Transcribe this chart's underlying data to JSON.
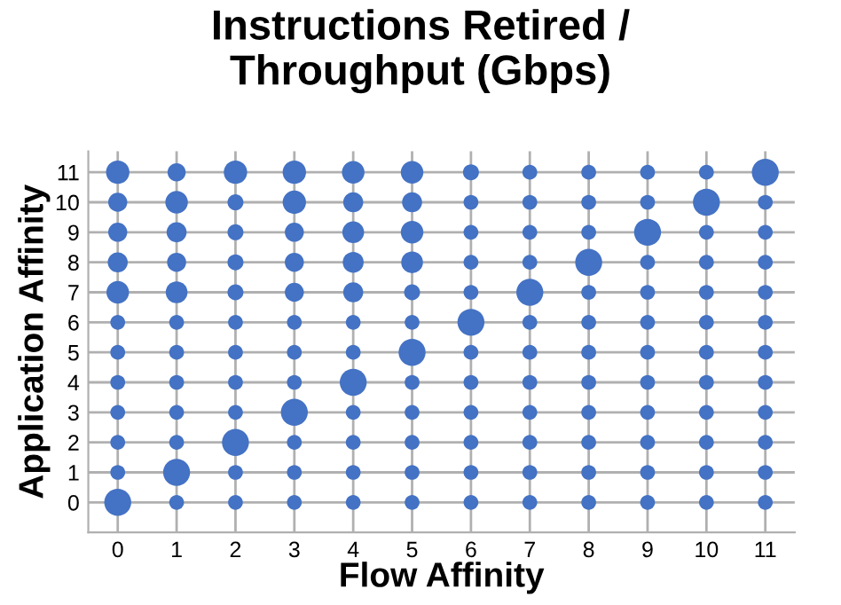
{
  "chart_data": {
    "type": "bubble",
    "title": "Instructions Retired /\nThroughput (Gbps)",
    "xlabel": "Flow Affinity",
    "ylabel": "Application Affinity",
    "series": [
      {
        "color": "#4472c4",
        "x": [
          0,
          1,
          2,
          3,
          4,
          5,
          6,
          7,
          8,
          9,
          10,
          11,
          0,
          1,
          2,
          3,
          4,
          5,
          6,
          7,
          8,
          9,
          10,
          11,
          0,
          1,
          2,
          3,
          4,
          5,
          6,
          7,
          8,
          9,
          10,
          11,
          0,
          1,
          2,
          3,
          4,
          5,
          6,
          7,
          8,
          9,
          10,
          11,
          0,
          1,
          2,
          3,
          4,
          5,
          6,
          7,
          8,
          9,
          10,
          11,
          0,
          1,
          2,
          3,
          4,
          5,
          6,
          7,
          8,
          9,
          10,
          11,
          0,
          1,
          2,
          3,
          4,
          5,
          6,
          7,
          8,
          9,
          10,
          11,
          0,
          1,
          2,
          3,
          4,
          5,
          6,
          7,
          8,
          9,
          10,
          11,
          0,
          1,
          2,
          3,
          4,
          5,
          6,
          7,
          8,
          9,
          10,
          11,
          0,
          1,
          2,
          3,
          4,
          5,
          6,
          7,
          8,
          9,
          10,
          11,
          0,
          1,
          2,
          3,
          4,
          5,
          6,
          7,
          8,
          9,
          10,
          11,
          0,
          1,
          2,
          3,
          4,
          5,
          6,
          7,
          8,
          9,
          10,
          11
        ],
        "values": [
          0,
          0,
          0,
          0,
          0,
          0,
          0,
          0,
          0,
          0,
          0,
          0,
          1,
          1,
          1,
          1,
          1,
          1,
          1,
          1,
          1,
          1,
          1,
          1,
          2,
          2,
          2,
          2,
          2,
          2,
          2,
          2,
          2,
          2,
          2,
          2,
          3,
          3,
          3,
          3,
          3,
          3,
          3,
          3,
          3,
          3,
          3,
          3,
          4,
          4,
          4,
          4,
          4,
          4,
          4,
          4,
          4,
          4,
          4,
          4,
          5,
          5,
          5,
          5,
          5,
          5,
          5,
          5,
          5,
          5,
          5,
          5,
          6,
          6,
          6,
          6,
          6,
          6,
          6,
          6,
          6,
          6,
          6,
          6,
          7,
          7,
          7,
          7,
          7,
          7,
          7,
          7,
          7,
          7,
          7,
          7,
          8,
          8,
          8,
          8,
          8,
          8,
          8,
          8,
          8,
          8,
          8,
          8,
          9,
          9,
          9,
          9,
          9,
          9,
          9,
          9,
          9,
          9,
          9,
          9,
          10,
          10,
          10,
          10,
          10,
          10,
          10,
          10,
          10,
          10,
          10,
          10,
          11,
          11,
          11,
          11,
          11,
          11,
          11,
          11,
          11,
          11,
          11,
          11
        ],
        "sizes": [
          1,
          0.3,
          0.3,
          0.3,
          0.3,
          0.3,
          0.3,
          0.3,
          0.3,
          0.3,
          0.3,
          0.3,
          0.3,
          1,
          0.3,
          0.3,
          0.3,
          0.3,
          0.3,
          0.3,
          0.3,
          0.3,
          0.3,
          0.3,
          0.3,
          0.3,
          1,
          0.3,
          0.3,
          0.3,
          0.3,
          0.3,
          0.3,
          0.3,
          0.3,
          0.3,
          0.3,
          0.3,
          0.3,
          1,
          0.3,
          0.3,
          0.3,
          0.3,
          0.3,
          0.3,
          0.3,
          0.3,
          0.3,
          0.3,
          0.3,
          0.3,
          1,
          0.3,
          0.3,
          0.3,
          0.3,
          0.3,
          0.3,
          0.3,
          0.3,
          0.3,
          0.3,
          0.3,
          0.3,
          1,
          0.3,
          0.3,
          0.3,
          0.3,
          0.3,
          0.3,
          0.3,
          0.3,
          0.3,
          0.3,
          0.3,
          0.3,
          1,
          0.3,
          0.3,
          0.3,
          0.3,
          0.3,
          0.7,
          0.65,
          0.35,
          0.5,
          0.55,
          0.35,
          0.3,
          1,
          0.3,
          0.3,
          0.3,
          0.3,
          0.55,
          0.5,
          0.35,
          0.5,
          0.6,
          0.65,
          0.3,
          0.3,
          1,
          0.3,
          0.3,
          0.3,
          0.5,
          0.55,
          0.35,
          0.5,
          0.65,
          0.7,
          0.3,
          0.3,
          0.3,
          1,
          0.3,
          0.3,
          0.5,
          0.7,
          0.35,
          0.75,
          0.55,
          0.55,
          0.3,
          0.3,
          0.3,
          0.3,
          1,
          0.3,
          0.75,
          0.45,
          0.75,
          0.75,
          0.7,
          0.7,
          0.35,
          0.3,
          0.3,
          0.3,
          0.3,
          1
        ]
      }
    ],
    "xlim": [
      -0.5,
      11.5
    ],
    "ylim": [
      -1,
      11.7
    ],
    "xticks": [
      0,
      1,
      2,
      3,
      4,
      5,
      6,
      7,
      8,
      9,
      10,
      11
    ],
    "yticks": [
      0,
      1,
      2,
      3,
      4,
      5,
      6,
      7,
      8,
      9,
      10,
      11
    ],
    "grid": true
  }
}
